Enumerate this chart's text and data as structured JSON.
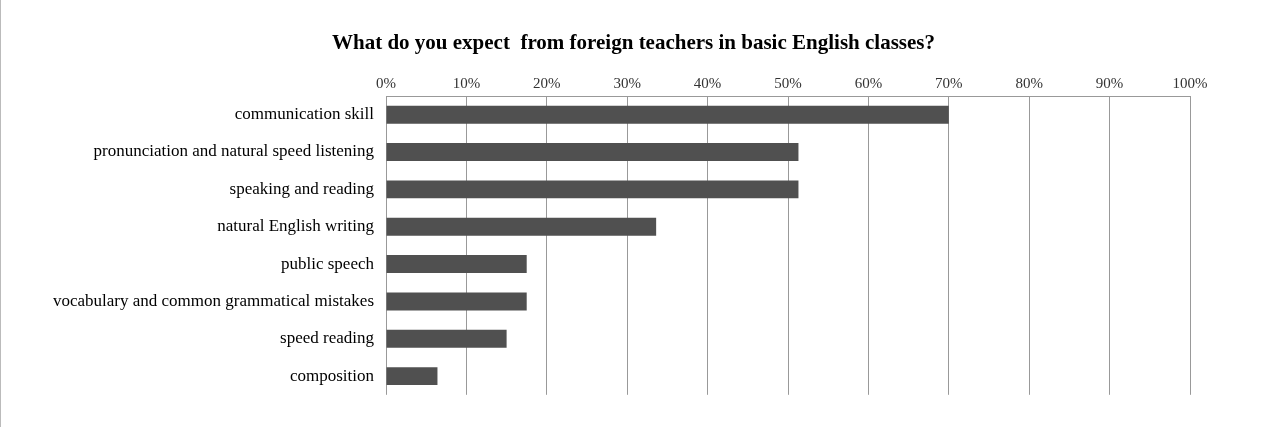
{
  "chart_data": {
    "type": "bar",
    "orientation": "horizontal",
    "title": "What do you expect  from foreign teachers in basic English classes?",
    "categories": [
      "communication skill",
      "pronunciation and natural speed listening",
      "speaking and reading",
      "natural English writing",
      "public speech",
      "vocabulary and common grammatical mistakes",
      "speed reading",
      "composition"
    ],
    "values": [
      70,
      51.3,
      51.3,
      33.6,
      17.5,
      17.5,
      15,
      6.4
    ],
    "color": "#505050",
    "xlim": [
      0,
      100
    ],
    "xticks": [
      {
        "value": 0,
        "label": "0%"
      },
      {
        "value": 10,
        "label": "10%"
      },
      {
        "value": 20,
        "label": "20%"
      },
      {
        "value": 30,
        "label": "30%"
      },
      {
        "value": 40,
        "label": "40%"
      },
      {
        "value": 50,
        "label": "50%"
      },
      {
        "value": 60,
        "label": "60%"
      },
      {
        "value": 70,
        "label": "70%"
      },
      {
        "value": 80,
        "label": "80%"
      },
      {
        "value": 90,
        "label": "90%"
      },
      {
        "value": 100,
        "label": "100%"
      }
    ],
    "grid": "x",
    "legend": false
  }
}
